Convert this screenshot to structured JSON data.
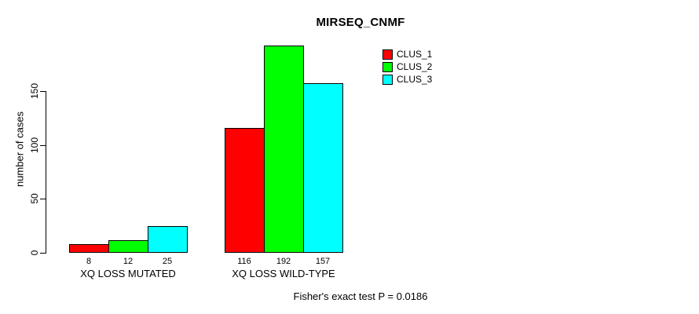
{
  "chart_data": {
    "type": "bar",
    "title": "MIRSEQ_CNMF",
    "ylabel": "number of cases",
    "xlabel": "",
    "categories": [
      "XQ LOSS MUTATED",
      "XQ LOSS WILD-TYPE"
    ],
    "series": [
      {
        "name": "CLUS_1",
        "color": "#FF0000",
        "values": [
          8,
          116
        ]
      },
      {
        "name": "CLUS_2",
        "color": "#00FF00",
        "values": [
          12,
          192
        ]
      },
      {
        "name": "CLUS_3",
        "color": "#00FFFF",
        "values": [
          25,
          157
        ]
      }
    ],
    "yticks": [
      0,
      50,
      100,
      150
    ],
    "ylim": [
      0,
      192
    ],
    "grid": false,
    "show_bar_values": true,
    "legend_position": "top-right",
    "annotation": "Fisher's exact test P = 0.0186",
    "colors": {
      "bar_border": "#000000",
      "axis": "#000000",
      "text": "#000000",
      "background": "#FFFFFF"
    }
  }
}
